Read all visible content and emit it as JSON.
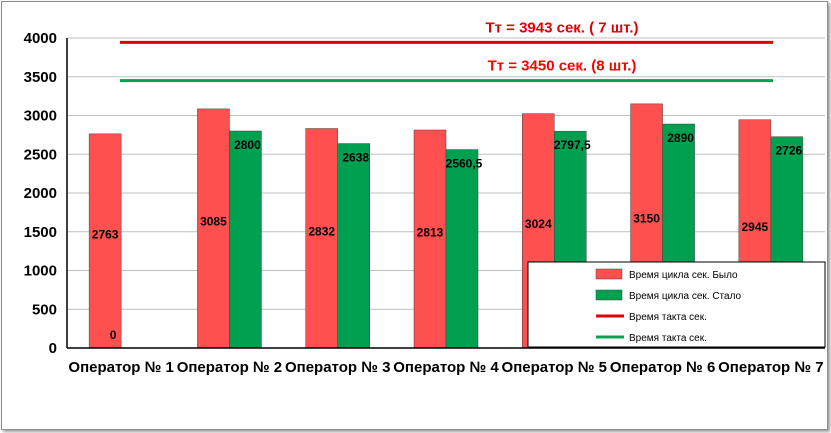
{
  "chart_data": {
    "type": "bar",
    "categories": [
      "Оператор № 1",
      "Оператор № 2",
      "Оператор № 3",
      "Оператор № 4",
      "Оператор № 5",
      "Оператор № 6",
      "Оператор № 7"
    ],
    "series": [
      {
        "name": "Время цикла сек. Было",
        "values": [
          2763,
          3085,
          2832,
          2813,
          3024,
          3150,
          2945
        ],
        "labels": [
          "2763",
          "3085",
          "2832",
          "2813",
          "3024",
          "3150",
          "2945"
        ],
        "color": "#ff5050"
      },
      {
        "name": "Время цикла сек. Стало",
        "values": [
          0,
          2800,
          2638,
          2560.5,
          2797.5,
          2890,
          2726
        ],
        "labels": [
          "0",
          "2800",
          "2638",
          "2560,5",
          "2797,5",
          "2890",
          "2726"
        ],
        "color": "#00a050"
      }
    ],
    "lines": [
      {
        "name": "Время такта сек.",
        "value": 3943,
        "color": "#e00000",
        "annotation": "Тт = 3943 сек. ( 7 шт.)"
      },
      {
        "name": "Время такта сек.",
        "value": 3450,
        "color": "#00a050",
        "annotation": "Тт = 3450 сек. (8 шт.)"
      }
    ],
    "ylim": [
      0,
      4000
    ],
    "yticks": [
      0,
      500,
      1000,
      1500,
      2000,
      2500,
      3000,
      3500,
      4000
    ],
    "grid": true,
    "legend": "bottom-right"
  }
}
